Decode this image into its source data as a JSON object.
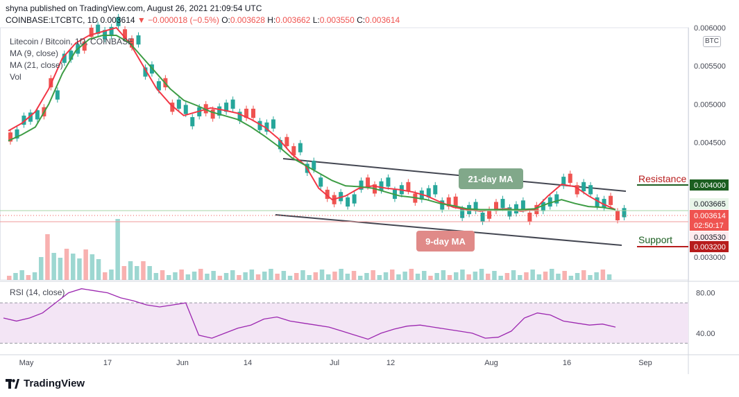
{
  "header": {
    "published": "shyna published on TradingView.com, August 26, 2021 21:09:54 UTC",
    "symbol": "COINBASE:LTCBTC, 1D",
    "last": "0.003614",
    "arrow": "▼",
    "change": "−0.000018 (−0.5%)",
    "o_label": "O:",
    "o": "0.003628",
    "h_label": "H:",
    "h": "0.003662",
    "l_label": "L:",
    "l": "0.003550",
    "c_label": "C:",
    "c": "0.003614"
  },
  "legend": {
    "title": "Litecoin / Bitcoin, 1D, COINBASE",
    "ma9": "MA (9, close)",
    "ma21": "MA (21, close)",
    "vol": "Vol",
    "rsi": "RSI (14, close)"
  },
  "currency_badge": "BTC",
  "footer": {
    "brand": "TradingView"
  },
  "colors": {
    "up": "#26a69a",
    "down": "#ef5350",
    "ma9": "#f23645",
    "ma21": "#3d9c44",
    "rsi": "#9c27b0",
    "rsi_band": "#f3e5f5",
    "trend": "#434651"
  },
  "chart_data": [
    {
      "type": "candlestick",
      "title": "Litecoin / Bitcoin, 1D, COINBASE",
      "x_tick_labels": [
        "May",
        "17",
        "Jun",
        "14",
        "Jul",
        "12",
        "Aug",
        "16",
        "Sep"
      ],
      "y_tick_labels": [
        "0.006000",
        "0.005500",
        "0.005000",
        "0.004500",
        "0.003000"
      ],
      "ylim": [
        0.0027,
        0.006
      ],
      "price_labels": [
        {
          "value": "0.004000",
          "kind": "resistance"
        },
        {
          "value": "0.003665",
          "kind": "ma"
        },
        {
          "value": "0.003614",
          "kind": "last",
          "countdown": "02:50:17"
        },
        {
          "value": "0.003530",
          "kind": "ma"
        },
        {
          "value": "0.003200",
          "kind": "support"
        }
      ],
      "annotations": [
        "Resistance",
        "Support",
        "21-day MA",
        "9-day MA"
      ],
      "series": [
        {
          "name": "MA (9, close)",
          "values": [
            0.00465,
            0.00475,
            0.0049,
            0.0052,
            0.0056,
            0.0058,
            0.0059,
            0.00595,
            0.006,
            0.0058,
            0.0055,
            0.0052,
            0.005,
            0.00485,
            0.0049,
            0.00495,
            0.00492,
            0.00488,
            0.0048,
            0.0047,
            0.00455,
            0.00435,
            0.0042,
            0.0039,
            0.00375,
            0.0038,
            0.0039,
            0.00393,
            0.0039,
            0.00388,
            0.00385,
            0.0038,
            0.00372,
            0.00365,
            0.00362,
            0.0036,
            0.00362,
            0.00363,
            0.0036,
            0.00362,
            0.0038,
            0.00395,
            0.00392,
            0.0038,
            0.0037,
            0.00362
          ]
        },
        {
          "name": "MA (21, close)",
          "values": [
            0.00452,
            0.0046,
            0.0047,
            0.005,
            0.0054,
            0.0057,
            0.00585,
            0.0059,
            0.0059,
            0.0058,
            0.0056,
            0.0054,
            0.0052,
            0.00505,
            0.00498,
            0.0049,
            0.00485,
            0.0048,
            0.0047,
            0.00458,
            0.00445,
            0.0043,
            0.0042,
            0.0041,
            0.004,
            0.00393,
            0.00392,
            0.0039,
            0.00385,
            0.0038,
            0.00378,
            0.00375,
            0.0037,
            0.00367,
            0.00363,
            0.00362,
            0.00362,
            0.00362,
            0.00362,
            0.00363,
            0.0037,
            0.00375,
            0.0037,
            0.00366,
            0.00365,
            0.00362
          ]
        }
      ],
      "rsi": {
        "ylim": [
          20,
          90
        ],
        "tick_labels": [
          "80.00",
          "40.00"
        ],
        "band": [
          30,
          70
        ],
        "values": [
          55,
          52,
          55,
          60,
          70,
          80,
          84,
          82,
          80,
          75,
          72,
          68,
          66,
          68,
          70,
          38,
          35,
          40,
          45,
          48,
          54,
          56,
          52,
          50,
          48,
          46,
          42,
          38,
          34,
          40,
          44,
          47,
          48,
          46,
          44,
          42,
          40,
          35,
          36,
          42,
          55,
          60,
          58,
          52,
          50,
          48,
          49,
          46
        ]
      }
    }
  ]
}
